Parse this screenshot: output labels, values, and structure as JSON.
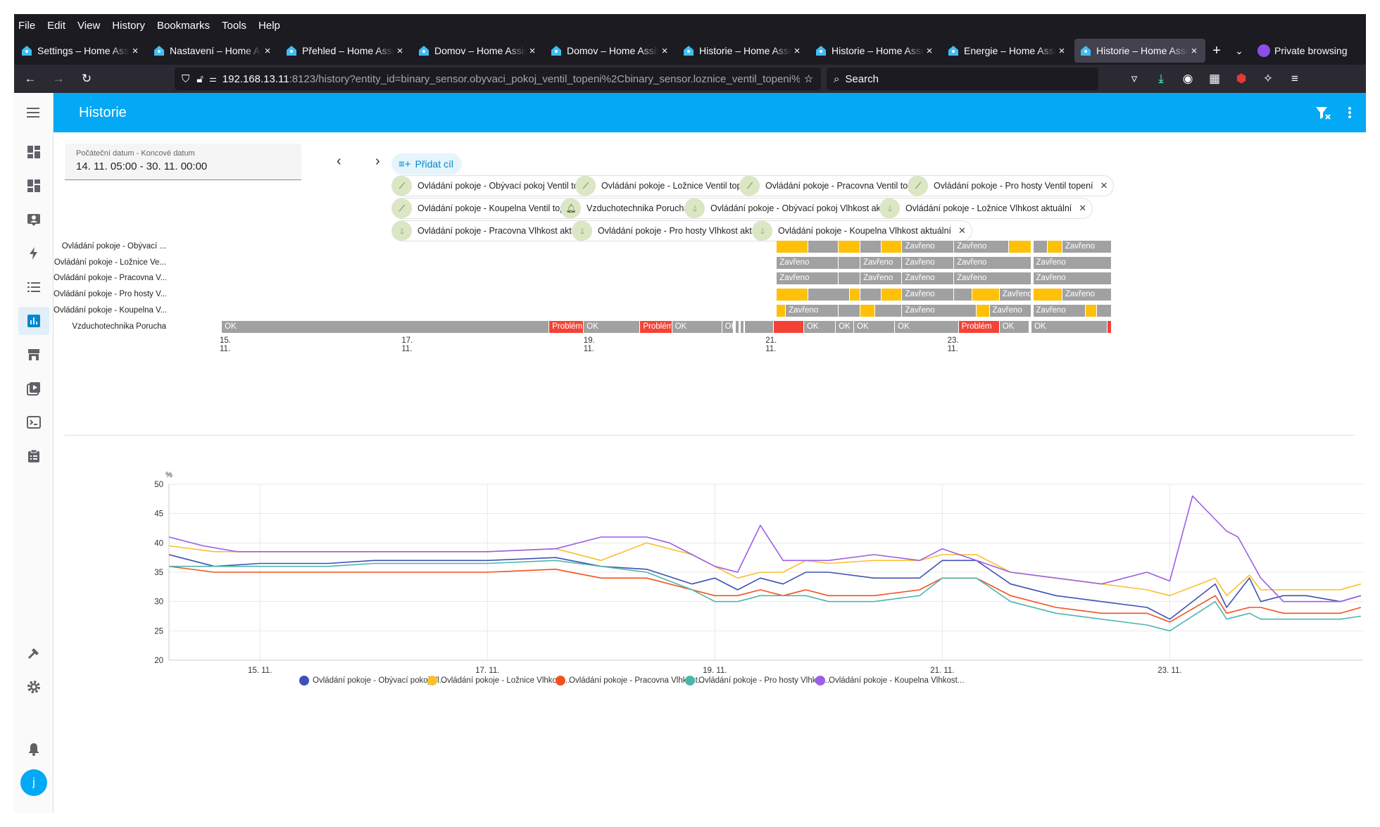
{
  "menubar": [
    "File",
    "Edit",
    "View",
    "History",
    "Bookmarks",
    "Tools",
    "Help"
  ],
  "tabs": [
    {
      "label": "Settings – Home Assis"
    },
    {
      "label": "Nastavení – Home As"
    },
    {
      "label": "Přehled – Home Assi"
    },
    {
      "label": "Domov – Home Assis"
    },
    {
      "label": "Domov – Home Assis"
    },
    {
      "label": "Historie – Home Assi"
    },
    {
      "label": "Historie – Home Assi"
    },
    {
      "label": "Energie – Home Assi"
    },
    {
      "label": "Historie – Home Assi",
      "active": true
    }
  ],
  "private_label": "Private browsing",
  "url": {
    "host": "192.168.13.11",
    "rest": ":8123/history?entity_id=binary_sensor.obyvaci_pokoj_ventil_topeni%2Cbinary_sensor.loznice_ventil_topeni%"
  },
  "search_label": "Search",
  "header": {
    "title": "Historie"
  },
  "date": {
    "label": "Počáteční datum - Koncové datum",
    "value": "14. 11. 05:00 - 30. 11. 00:00"
  },
  "add_target": "Přidat cíl",
  "chips": [
    {
      "label": "Ovládání pokoje - Obývací pokoj Ventil topení",
      "icon": "valve-icon"
    },
    {
      "label": "Ovládání pokoje - Ložnice Ventil topení",
      "icon": "valve-icon"
    },
    {
      "label": "Ovládání pokoje - Pracovna Ventil topení",
      "icon": "valve-icon"
    },
    {
      "label": "Ovládání pokoje - Pro hosty Ventil topení",
      "icon": "valve-icon"
    },
    {
      "label": "Ovládání pokoje - Koupelna Ventil topení",
      "icon": "valve-icon"
    },
    {
      "label": "Vzduchotechnika Porucha",
      "icon": "bell-icon"
    },
    {
      "label": "Ovládání pokoje - Obývací pokoj Vlhkost aktuální",
      "icon": "water-icon"
    },
    {
      "label": "Ovládání pokoje - Ložnice Vlhkost aktuální",
      "icon": "water-icon"
    },
    {
      "label": "Ovládání pokoje - Pracovna Vlhkost aktuální",
      "icon": "water-icon"
    },
    {
      "label": "Ovládání pokoje - Pro hosty Vlhkost aktuální",
      "icon": "water-icon"
    },
    {
      "label": "Ovládání pokoje - Koupelna Vlhkost aktuální",
      "icon": "water-icon"
    }
  ],
  "timeline": {
    "rows": [
      {
        "label": "Ovládání pokoje - Obývací ...",
        "segments": [
          [
            "y",
            21.0,
            21.35,
            ""
          ],
          [
            "g",
            21.35,
            21.68,
            ""
          ],
          [
            "y",
            21.68,
            21.92,
            ""
          ],
          [
            "g",
            21.92,
            22.15,
            ""
          ],
          [
            "y",
            22.15,
            22.38,
            ""
          ],
          [
            "g",
            22.38,
            22.95,
            "Zavřeno"
          ],
          [
            "g",
            22.95,
            23.55,
            "Zavřeno"
          ],
          [
            "y",
            23.55,
            23.8,
            ""
          ],
          [
            "g",
            23.82,
            23.98,
            ""
          ],
          [
            "y",
            23.98,
            24.14,
            ""
          ],
          [
            "g",
            24.14,
            24.68,
            "Zavřeno"
          ]
        ]
      },
      {
        "label": "Ovládání pokoje - Ložnice Ve...",
        "segments": [
          [
            "g",
            21.0,
            21.68,
            "Zavřeno"
          ],
          [
            "g",
            21.68,
            21.92,
            ""
          ],
          [
            "g",
            21.92,
            22.38,
            "Zavřeno"
          ],
          [
            "g",
            22.38,
            22.95,
            "Zavřeno"
          ],
          [
            "g",
            22.95,
            23.8,
            "Zavřeno"
          ],
          [
            "g",
            23.82,
            24.68,
            "Zavřeno"
          ]
        ]
      },
      {
        "label": "Ovládání pokoje - Pracovna V...",
        "segments": [
          [
            "g",
            21.0,
            21.68,
            "Zavřeno"
          ],
          [
            "g",
            21.68,
            21.92,
            ""
          ],
          [
            "g",
            21.92,
            22.38,
            "Zavřeno"
          ],
          [
            "g",
            22.38,
            22.95,
            "Zavřeno"
          ],
          [
            "g",
            22.95,
            23.8,
            "Zavřeno"
          ],
          [
            "g",
            23.82,
            24.68,
            "Zavřeno"
          ]
        ]
      },
      {
        "label": "Ovládání pokoje - Pro hosty V...",
        "segments": [
          [
            "y",
            21.0,
            21.35,
            ""
          ],
          [
            "g",
            21.35,
            21.8,
            ""
          ],
          [
            "y",
            21.8,
            21.92,
            ""
          ],
          [
            "g",
            21.92,
            22.15,
            ""
          ],
          [
            "y",
            22.15,
            22.38,
            ""
          ],
          [
            "g",
            22.38,
            22.95,
            "Zavřeno"
          ],
          [
            "g",
            22.95,
            23.15,
            ""
          ],
          [
            "y",
            23.15,
            23.45,
            ""
          ],
          [
            "g",
            23.45,
            23.8,
            "Zavřeno"
          ],
          [
            "y",
            23.82,
            24.14,
            ""
          ],
          [
            "g",
            24.14,
            24.68,
            "Zavřeno"
          ]
        ]
      },
      {
        "label": "Ovládání pokoje - Koupelna V...",
        "segments": [
          [
            "y",
            21.0,
            21.1,
            ""
          ],
          [
            "g",
            21.1,
            21.68,
            "Zavřeno"
          ],
          [
            "g",
            21.68,
            21.92,
            ""
          ],
          [
            "y",
            21.92,
            22.08,
            ""
          ],
          [
            "g",
            22.08,
            22.38,
            ""
          ],
          [
            "g",
            22.38,
            23.2,
            "Zavřeno"
          ],
          [
            "y",
            23.2,
            23.34,
            ""
          ],
          [
            "g",
            23.34,
            23.8,
            "Zavřeno"
          ],
          [
            "g",
            23.82,
            24.4,
            "Zavřeno"
          ],
          [
            "y",
            24.4,
            24.52,
            ""
          ],
          [
            "g",
            24.52,
            24.68,
            ""
          ]
        ]
      },
      {
        "label": "Vzduchotechnika Porucha",
        "segments": [
          [
            "g",
            14.9,
            18.5,
            "OK"
          ],
          [
            "r",
            18.5,
            18.88,
            "Problém"
          ],
          [
            "g",
            18.88,
            19.5,
            "OK"
          ],
          [
            "r",
            19.5,
            19.85,
            "Problém"
          ],
          [
            "g",
            19.85,
            20.4,
            "OK"
          ],
          [
            "g",
            20.4,
            20.53,
            "OK"
          ],
          [
            "g",
            20.55,
            20.58,
            ""
          ],
          [
            "g",
            20.6,
            20.62,
            ""
          ],
          [
            "g",
            20.65,
            20.97,
            ""
          ],
          [
            "r",
            20.97,
            21.3,
            ""
          ],
          [
            "g",
            21.3,
            21.65,
            "OK"
          ],
          [
            "g",
            21.65,
            21.85,
            "OK"
          ],
          [
            "g",
            21.85,
            22.3,
            "OK"
          ],
          [
            "g",
            22.3,
            23.0,
            "OK"
          ],
          [
            "r",
            23.0,
            23.45,
            "Problém"
          ],
          [
            "g",
            23.45,
            23.78,
            "OK"
          ],
          [
            "g",
            23.8,
            24.64,
            "OK"
          ],
          [
            "r",
            24.64,
            24.68,
            ""
          ]
        ]
      }
    ],
    "ticks": [
      "15. 11.",
      "17. 11.",
      "19. 11.",
      "21. 11.",
      "23. 11."
    ]
  },
  "colors": {
    "yellow": "#ffc107",
    "gray": "#a1a1a1",
    "red": "#f44336",
    "accent": "#03a9f4"
  },
  "chart_data": {
    "type": "line",
    "ylabel": "%",
    "ylim": [
      20,
      50
    ],
    "yticks": [
      "50",
      "45",
      "40",
      "35",
      "30",
      "25",
      "20"
    ],
    "xticks": [
      "15. 11.",
      "17. 11.",
      "19. 11.",
      "21. 11.",
      "23. 11."
    ],
    "x_range_days": [
      14.2,
      24.7
    ],
    "series": [
      {
        "name": "Ovládání pokoje - Obývací pokoj Vl...",
        "color": "#3f51b5",
        "x": [
          14.2,
          14.6,
          15.0,
          15.6,
          16.0,
          17.0,
          17.6,
          18.0,
          18.4,
          18.8,
          19.0,
          19.2,
          19.4,
          19.6,
          19.8,
          20.0,
          20.4,
          20.8,
          21.0,
          21.3,
          21.6,
          22.0,
          22.4,
          22.8,
          23.0,
          23.4,
          23.5,
          23.7,
          23.8,
          24.0,
          24.2,
          24.5,
          24.68
        ],
        "y": [
          38,
          36,
          36.5,
          36.5,
          37,
          37,
          37.5,
          36,
          35.5,
          33,
          34,
          32,
          34,
          33,
          35,
          35,
          34,
          34,
          37,
          37,
          33,
          31,
          30,
          29,
          27,
          33,
          29,
          34,
          30,
          31,
          31,
          30,
          31
        ]
      },
      {
        "name": "Ovládání pokoje - Ložnice Vlhkost ...",
        "color": "#fbc02d",
        "x": [
          14.2,
          14.6,
          15.0,
          15.6,
          16.0,
          17.0,
          17.6,
          18.0,
          18.4,
          18.8,
          19.0,
          19.2,
          19.4,
          19.6,
          19.8,
          20.0,
          20.4,
          20.8,
          21.0,
          21.3,
          21.6,
          22.0,
          22.4,
          22.8,
          23.0,
          23.4,
          23.5,
          23.7,
          23.8,
          24.0,
          24.2,
          24.5,
          24.68
        ],
        "y": [
          39.5,
          38.5,
          38.5,
          38.5,
          38.5,
          38.5,
          39,
          37,
          40,
          38,
          36,
          34,
          35,
          35,
          37,
          36.5,
          37,
          37,
          38,
          38,
          35,
          34,
          33,
          32,
          31,
          34,
          31,
          34.5,
          32,
          32,
          32,
          32,
          33
        ]
      },
      {
        "name": "Ovládání pokoje - Pracovna Vlhkost...",
        "color": "#f4511e",
        "x": [
          14.2,
          14.6,
          15.0,
          15.6,
          16.0,
          17.0,
          17.6,
          18.0,
          18.4,
          18.8,
          19.0,
          19.2,
          19.4,
          19.6,
          19.8,
          20.0,
          20.4,
          20.8,
          21.0,
          21.3,
          21.6,
          22.0,
          22.4,
          22.8,
          23.0,
          23.4,
          23.5,
          23.7,
          23.8,
          24.0,
          24.2,
          24.5,
          24.68
        ],
        "y": [
          36,
          35,
          35,
          35,
          35,
          35,
          35.5,
          34,
          34,
          32,
          31,
          31,
          32,
          31,
          32,
          31,
          31,
          32,
          34,
          34,
          31,
          29,
          28,
          28,
          26.5,
          31,
          28,
          29,
          29,
          28,
          28,
          28,
          29
        ]
      },
      {
        "name": "Ovládání pokoje - Pro hosty Vlhkos...",
        "color": "#4db6ac",
        "x": [
          14.2,
          14.6,
          15.0,
          15.6,
          16.0,
          17.0,
          17.6,
          18.0,
          18.4,
          18.8,
          19.0,
          19.2,
          19.4,
          19.6,
          19.8,
          20.0,
          20.4,
          20.8,
          21.0,
          21.3,
          21.6,
          22.0,
          22.4,
          22.8,
          23.0,
          23.4,
          23.5,
          23.7,
          23.8,
          24.0,
          24.2,
          24.5,
          24.68
        ],
        "y": [
          36,
          36,
          36,
          36,
          36.5,
          36.5,
          37,
          36,
          35,
          32,
          30,
          30,
          31,
          31,
          31,
          30,
          30,
          31,
          34,
          34,
          30,
          28,
          27,
          26,
          25,
          30,
          27,
          28,
          27,
          27,
          27,
          27,
          27.5
        ]
      },
      {
        "name": "Ovládání pokoje - Koupelna Vlhkost...",
        "color": "#9c5fe6",
        "x": [
          14.2,
          14.5,
          14.8,
          15.0,
          15.6,
          16.0,
          17.0,
          17.6,
          18.0,
          18.4,
          18.6,
          18.8,
          19.0,
          19.2,
          19.4,
          19.6,
          19.8,
          20.0,
          20.4,
          20.8,
          21.0,
          21.3,
          21.6,
          22.0,
          22.4,
          22.8,
          23.0,
          23.2,
          23.4,
          23.5,
          23.6,
          23.8,
          24.0,
          24.2,
          24.5,
          24.68
        ],
        "y": [
          41,
          39.5,
          38.5,
          38.5,
          38.5,
          38.5,
          38.5,
          39,
          41,
          41,
          40,
          38,
          36,
          35,
          43,
          37,
          37,
          37,
          38,
          37,
          39,
          37,
          35,
          34,
          33,
          35,
          33.5,
          48,
          44,
          42,
          41,
          34,
          30,
          30,
          30,
          31
        ]
      }
    ]
  }
}
